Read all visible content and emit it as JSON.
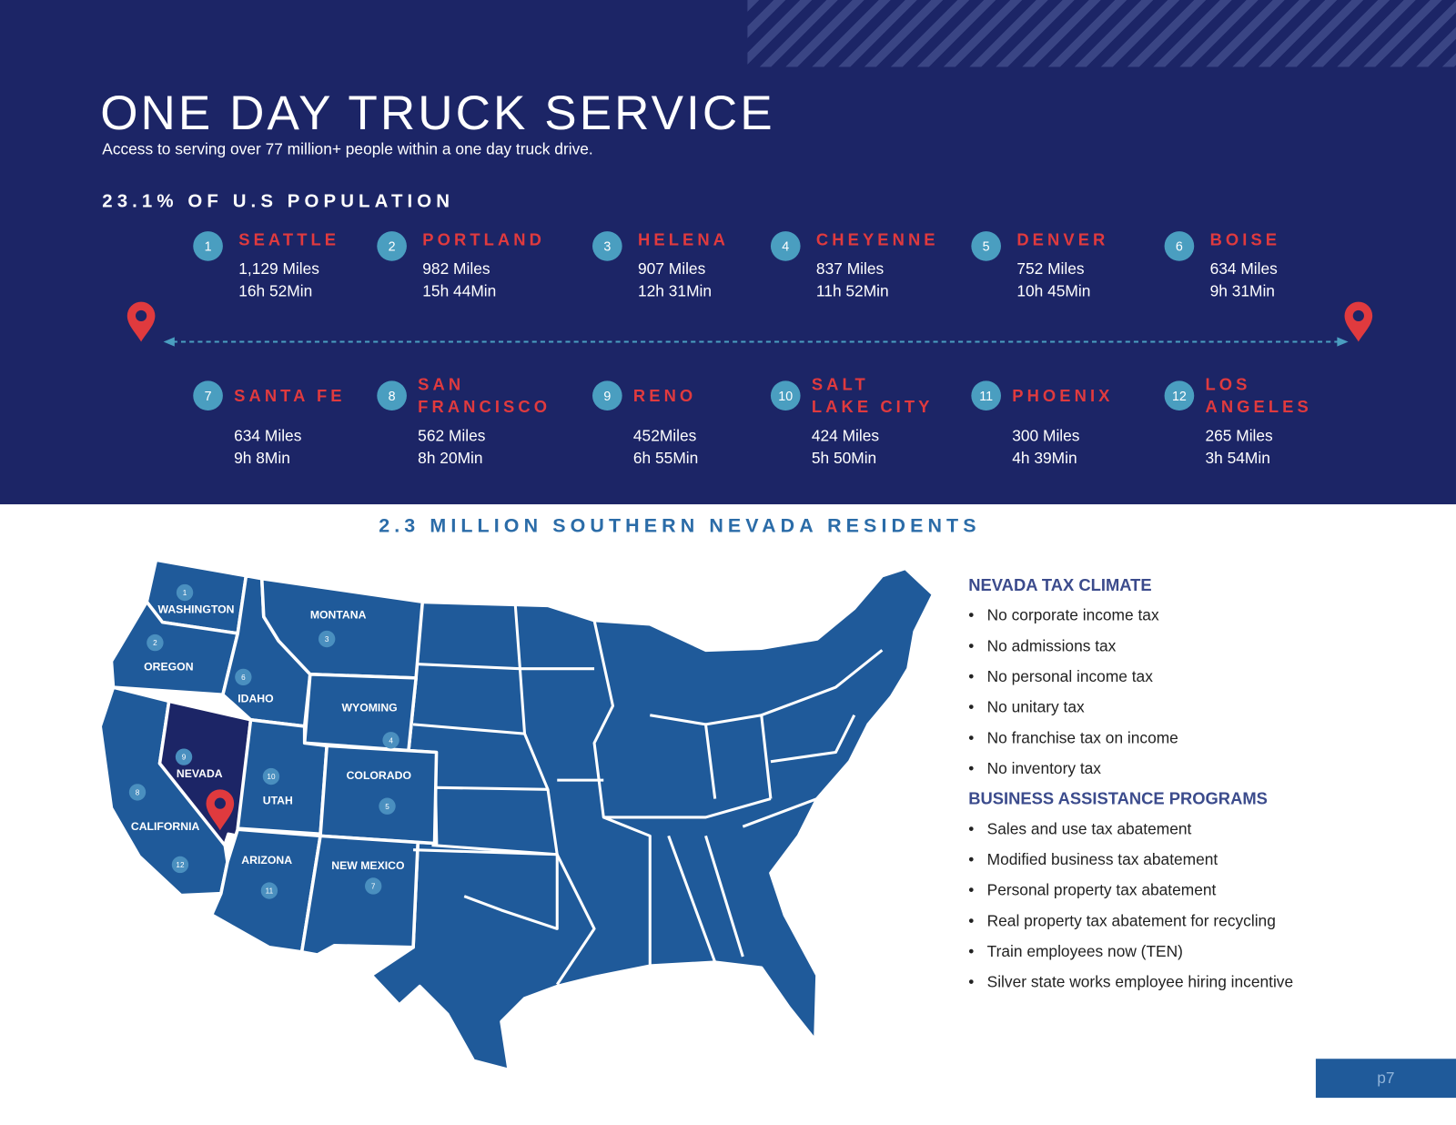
{
  "header": {
    "title": "ONE DAY TRUCK SERVICE",
    "subtitle": "Access to serving over 77 million+ people within a one day truck drive.",
    "population": "23.1% OF U.S POPULATION"
  },
  "cities_top": [
    {
      "num": "1",
      "name": [
        "SEATTLE"
      ],
      "miles": "1,129 Miles",
      "time": "16h 52Min"
    },
    {
      "num": "2",
      "name": [
        "PORTLAND"
      ],
      "miles": "982 Miles",
      "time": "15h 44Min"
    },
    {
      "num": "3",
      "name": [
        "HELENA"
      ],
      "miles": "907 Miles",
      "time": "12h 31Min"
    },
    {
      "num": "4",
      "name": [
        "CHEYENNE"
      ],
      "miles": "837 Miles",
      "time": "11h 52Min"
    },
    {
      "num": "5",
      "name": [
        "DENVER"
      ],
      "miles": "752 Miles",
      "time": "10h 45Min"
    },
    {
      "num": "6",
      "name": [
        "BOISE"
      ],
      "miles": "634 Miles",
      "time": "9h 31Min"
    }
  ],
  "cities_bottom": [
    {
      "num": "7",
      "name": [
        "SANTA FE"
      ],
      "miles": "634 Miles",
      "time": "9h 8Min"
    },
    {
      "num": "8",
      "name": [
        "SAN",
        "FRANCISCO"
      ],
      "miles": "562 Miles",
      "time": "8h 20Min"
    },
    {
      "num": "9",
      "name": [
        "RENO"
      ],
      "miles": "452Miles",
      "time": "6h 55Min"
    },
    {
      "num": "10",
      "name": [
        "SALT",
        "LAKE CITY"
      ],
      "miles": "424 Miles",
      "time": "5h 50Min"
    },
    {
      "num": "11",
      "name": [
        "PHOENIX"
      ],
      "miles": "300 Miles",
      "time": "4h 39Min"
    },
    {
      "num": "12",
      "name": [
        "LOS",
        "ANGELES"
      ],
      "miles": "265 Miles",
      "time": "3h 54Min"
    }
  ],
  "residents_headline": "2.3 MILLION SOUTHERN NEVADA RESIDENTS",
  "map": {
    "states": [
      {
        "label": "WASHINGTON",
        "num": "1"
      },
      {
        "label": "OREGON",
        "num": "2"
      },
      {
        "label": "MONTANA",
        "num": "3"
      },
      {
        "label": "WYOMING",
        "num": "4"
      },
      {
        "label": "COLORADO",
        "num": "5"
      },
      {
        "label": "IDAHO",
        "num": "6"
      },
      {
        "label": "NEW MEXICO",
        "num": "7"
      },
      {
        "label": "CALIFORNIA",
        "num": "8"
      },
      {
        "label": "NEVADA",
        "num": "9"
      },
      {
        "label": "UTAH",
        "num": "10"
      },
      {
        "label": "ARIZONA",
        "num": "11"
      },
      {
        "label": "",
        "num": "12"
      }
    ],
    "highlight_state": "NEVADA",
    "colors": {
      "states": "#1f5a9a",
      "highlight": "#1c2566",
      "pin": "#e03a3e"
    }
  },
  "tax_climate": {
    "heading": "NEVADA TAX CLIMATE",
    "items": [
      "No corporate income tax",
      "No admissions tax",
      "No personal income tax",
      "No unitary tax",
      "No franchise tax on income",
      "No inventory tax"
    ]
  },
  "business_programs": {
    "heading": "BUSINESS ASSISTANCE PROGRAMS",
    "items": [
      "Sales and use tax abatement",
      "Modified business tax abatement",
      "Personal property tax abatement",
      "Real property tax abatement for recycling",
      "Train employees now (TEN)",
      "Silver state works employee hiring incentive"
    ]
  },
  "page_number": "p7",
  "colors": {
    "navy": "#1c2566",
    "accent_red": "#e03a3e",
    "number_circle": "#4a9ec0",
    "map_blue": "#1f5a9a",
    "headline_blue": "#2b6ca8"
  }
}
